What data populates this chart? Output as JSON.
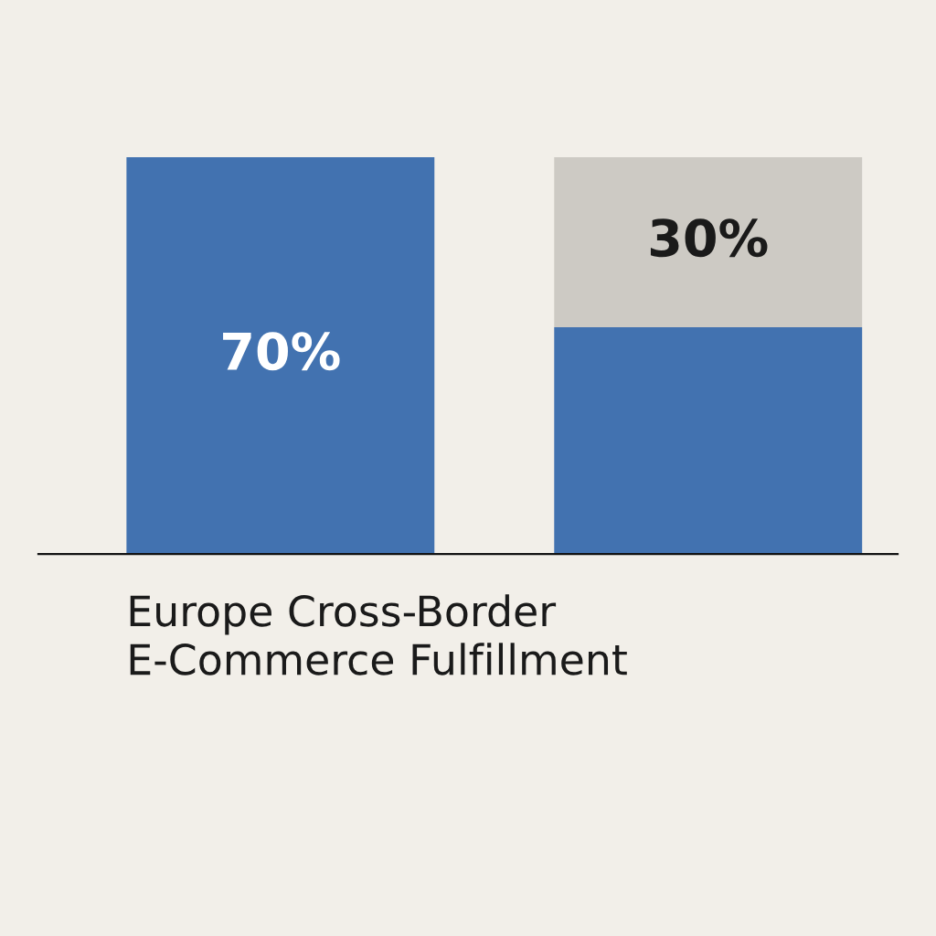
{
  "chart_data": {
    "type": "bar",
    "title": "Europe Cross-Border\nE-Commerce Fulfillment",
    "stacked": true,
    "categories": [
      null,
      null
    ],
    "ylim": [
      0,
      70
    ],
    "series": [
      {
        "color": "#4272b0",
        "values": [
          70,
          40
        ],
        "value_labels": [
          "70%",
          null
        ]
      },
      {
        "color": "#cdcac4",
        "values": [
          null,
          30
        ],
        "value_labels": [
          null,
          "30%"
        ]
      }
    ]
  }
}
